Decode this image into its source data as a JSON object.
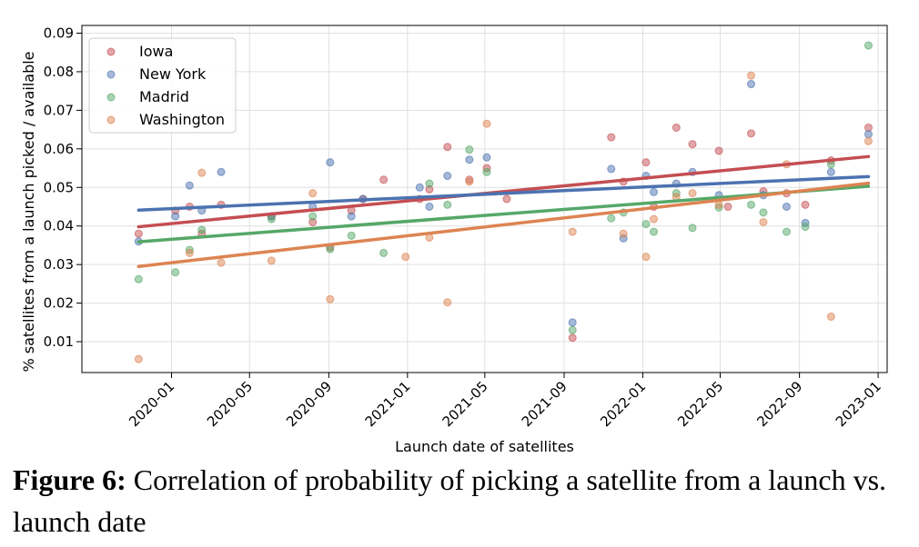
{
  "caption": {
    "label": "Figure 6:",
    "text": "Correlation of probability of picking a satellite from a launch vs. launch date"
  },
  "colors": {
    "Iowa": "#c44e52",
    "New York": "#4c72b0",
    "Madrid": "#55a868",
    "Washington": "#dd8452"
  },
  "chart_data": {
    "type": "scatter",
    "title": "",
    "xlabel": "Launch date of satellites",
    "ylabel": "% satellites from a launch picked / available",
    "xlim": [
      "2019-08-15",
      "2023-01-15"
    ],
    "ylim": [
      0.002,
      0.092
    ],
    "x_ticks": [
      "2020-01",
      "2020-05",
      "2020-09",
      "2021-01",
      "2021-05",
      "2021-09",
      "2022-01",
      "2022-05",
      "2022-09",
      "2023-01"
    ],
    "y_ticks": [
      0.01,
      0.02,
      0.03,
      0.04,
      0.05,
      0.06,
      0.07,
      0.08,
      0.09
    ],
    "y_tick_labels": [
      "0.01",
      "0.02",
      "0.03",
      "0.04",
      "0.05",
      "0.06",
      "0.07",
      "0.08",
      "0.09"
    ],
    "grid": true,
    "legend_position": "top-left",
    "series": [
      {
        "name": "Iowa",
        "points": [
          [
            "2019-11-11",
            0.038
          ],
          [
            "2020-01-07",
            0.044
          ],
          [
            "2020-01-29",
            0.045
          ],
          [
            "2020-02-17",
            0.038
          ],
          [
            "2020-03-18",
            0.0455
          ],
          [
            "2020-06-04",
            0.0425
          ],
          [
            "2020-08-07",
            0.041
          ],
          [
            "2020-09-03",
            0.0345
          ],
          [
            "2020-10-06",
            0.044
          ],
          [
            "2020-10-24",
            0.047
          ],
          [
            "2020-11-25",
            0.052
          ],
          [
            "2021-01-20",
            0.047
          ],
          [
            "2021-02-04",
            0.0495
          ],
          [
            "2021-03-04",
            0.0605
          ],
          [
            "2021-04-07",
            0.052
          ],
          [
            "2021-05-04",
            0.055
          ],
          [
            "2021-06-04",
            0.047
          ],
          [
            "2021-09-14",
            0.011
          ],
          [
            "2021-11-13",
            0.063
          ],
          [
            "2021-12-02",
            0.0515
          ],
          [
            "2022-01-06",
            0.0565
          ],
          [
            "2022-01-18",
            0.045
          ],
          [
            "2022-02-22",
            0.0655
          ],
          [
            "2022-03-19",
            0.0612
          ],
          [
            "2022-04-29",
            0.0595
          ],
          [
            "2022-05-13",
            0.045
          ],
          [
            "2022-06-18",
            0.064
          ],
          [
            "2022-07-07",
            0.049
          ],
          [
            "2022-08-12",
            0.0485
          ],
          [
            "2022-09-10",
            0.0455
          ],
          [
            "2022-10-20",
            0.057
          ],
          [
            "2022-12-17",
            0.0655
          ]
        ],
        "trend": [
          [
            0.0398,
            0.058
          ]
        ]
      },
      {
        "name": "New York",
        "points": [
          [
            "2019-11-11",
            0.036
          ],
          [
            "2020-01-07",
            0.0425
          ],
          [
            "2020-01-29",
            0.0505
          ],
          [
            "2020-02-17",
            0.044
          ],
          [
            "2020-03-18",
            0.054
          ],
          [
            "2020-06-04",
            0.0425
          ],
          [
            "2020-08-07",
            0.045
          ],
          [
            "2020-09-03",
            0.0565
          ],
          [
            "2020-10-06",
            0.0425
          ],
          [
            "2020-10-24",
            0.047
          ],
          [
            "2021-01-20",
            0.05
          ],
          [
            "2021-02-04",
            0.045
          ],
          [
            "2021-03-04",
            0.053
          ],
          [
            "2021-04-07",
            0.0572
          ],
          [
            "2021-05-04",
            0.0578
          ],
          [
            "2021-09-14",
            0.015
          ],
          [
            "2021-11-13",
            0.0548
          ],
          [
            "2021-12-02",
            0.0368
          ],
          [
            "2022-01-06",
            0.053
          ],
          [
            "2022-01-18",
            0.0488
          ],
          [
            "2022-02-22",
            0.051
          ],
          [
            "2022-03-19",
            0.054
          ],
          [
            "2022-04-29",
            0.048
          ],
          [
            "2022-06-18",
            0.0768
          ],
          [
            "2022-07-07",
            0.048
          ],
          [
            "2022-08-12",
            0.045
          ],
          [
            "2022-09-10",
            0.0408
          ],
          [
            "2022-10-20",
            0.054
          ],
          [
            "2022-12-17",
            0.0638
          ]
        ],
        "trend": [
          [
            0.0441,
            0.0528
          ]
        ]
      },
      {
        "name": "Madrid",
        "points": [
          [
            "2019-11-11",
            0.0262
          ],
          [
            "2020-01-07",
            0.028
          ],
          [
            "2020-01-29",
            0.0338
          ],
          [
            "2020-02-17",
            0.039
          ],
          [
            "2020-06-04",
            0.0418
          ],
          [
            "2020-08-07",
            0.0425
          ],
          [
            "2020-09-03",
            0.034
          ],
          [
            "2020-10-06",
            0.0375
          ],
          [
            "2020-11-25",
            0.033
          ],
          [
            "2021-02-04",
            0.051
          ],
          [
            "2021-03-04",
            0.0455
          ],
          [
            "2021-04-07",
            0.0598
          ],
          [
            "2021-05-04",
            0.054
          ],
          [
            "2021-09-14",
            0.013
          ],
          [
            "2021-11-13",
            0.042
          ],
          [
            "2021-12-02",
            0.0435
          ],
          [
            "2022-01-06",
            0.0405
          ],
          [
            "2022-01-18",
            0.0385
          ],
          [
            "2022-02-22",
            0.0485
          ],
          [
            "2022-03-19",
            0.0395
          ],
          [
            "2022-04-29",
            0.0448
          ],
          [
            "2022-06-18",
            0.0455
          ],
          [
            "2022-07-07",
            0.0435
          ],
          [
            "2022-08-12",
            0.0385
          ],
          [
            "2022-09-10",
            0.0398
          ],
          [
            "2022-10-20",
            0.056
          ],
          [
            "2022-12-17",
            0.0868
          ]
        ],
        "trend": [
          [
            0.0359,
            0.0503
          ]
        ]
      },
      {
        "name": "Washington",
        "points": [
          [
            "2019-11-11",
            0.0055
          ],
          [
            "2020-01-29",
            0.033
          ],
          [
            "2020-02-17",
            0.0538
          ],
          [
            "2020-03-18",
            0.0305
          ],
          [
            "2020-06-04",
            0.031
          ],
          [
            "2020-08-07",
            0.0485
          ],
          [
            "2020-09-03",
            0.021
          ],
          [
            "2020-12-29",
            0.032
          ],
          [
            "2021-02-04",
            0.037
          ],
          [
            "2021-03-04",
            0.0202
          ],
          [
            "2021-04-07",
            0.0515
          ],
          [
            "2021-05-04",
            0.0665
          ],
          [
            "2021-09-14",
            0.0385
          ],
          [
            "2021-12-02",
            0.038
          ],
          [
            "2022-01-06",
            0.032
          ],
          [
            "2022-01-18",
            0.0418
          ],
          [
            "2022-02-22",
            0.0475
          ],
          [
            "2022-03-19",
            0.0485
          ],
          [
            "2022-04-29",
            0.0455
          ],
          [
            "2022-06-18",
            0.079
          ],
          [
            "2022-07-07",
            0.041
          ],
          [
            "2022-08-12",
            0.056
          ],
          [
            "2022-10-20",
            0.0165
          ],
          [
            "2022-12-17",
            0.062
          ]
        ],
        "trend": [
          [
            0.0295,
            0.0511
          ]
        ]
      }
    ],
    "trend_x": [
      "2019-11-11",
      "2022-12-17"
    ]
  }
}
